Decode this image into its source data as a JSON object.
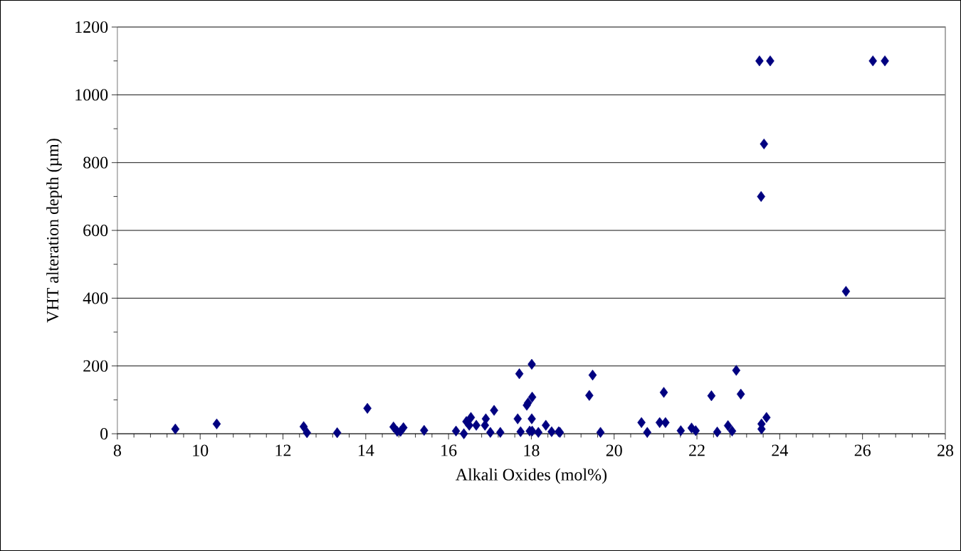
{
  "chart_data": {
    "type": "scatter",
    "xlabel": "Alkali Oxides (mol%)",
    "ylabel": "VHT alteration depth (µm)",
    "x": [
      9.4,
      10.4,
      12.5,
      12.58,
      13.31,
      14.04,
      14.67,
      14.76,
      14.84,
      14.91,
      15.41,
      16.18,
      16.37,
      16.43,
      16.54,
      16.5,
      16.67,
      16.9,
      16.88,
      17.01,
      17.1,
      17.25,
      17.71,
      17.67,
      17.74,
      17.89,
      17.92,
      18.02,
      18.01,
      18.01,
      17.96,
      18.02,
      18.17,
      18.35,
      18.49,
      18.66,
      18.69,
      19.4,
      19.48,
      19.67,
      20.66,
      20.8,
      21.2,
      21.1,
      21.24,
      21.61,
      21.87,
      21.97,
      22.35,
      22.49,
      22.75,
      22.85,
      22.95,
      23.06,
      23.56,
      23.56,
      23.68,
      25.6,
      23.51,
      23.77,
      23.62,
      23.55,
      26.25,
      26.54
    ],
    "series": [
      {
        "color": "#000080",
        "values": [
          14,
          29,
          21,
          3,
          3,
          75,
          20,
          7,
          7,
          18,
          10,
          8,
          0,
          36,
          48,
          25,
          25,
          44,
          25,
          4,
          69,
          4,
          177,
          44,
          6,
          84,
          91,
          108,
          205,
          44,
          8,
          8,
          4,
          25,
          6,
          6,
          4,
          113,
          173,
          4,
          33,
          4,
          122,
          33,
          33,
          9,
          17,
          9,
          112,
          5,
          24,
          8,
          187,
          117,
          29,
          14,
          48,
          420,
          1100,
          1100,
          855,
          700,
          1100,
          1100
        ]
      }
    ],
    "xlim": [
      8,
      28
    ],
    "ylim": [
      0,
      1200
    ],
    "xticks": [
      8,
      10,
      12,
      14,
      16,
      18,
      20,
      22,
      24,
      26,
      28
    ],
    "yticks": [
      0,
      200,
      400,
      600,
      800,
      1000,
      1200
    ],
    "grid": "y",
    "marker": "diamond"
  }
}
